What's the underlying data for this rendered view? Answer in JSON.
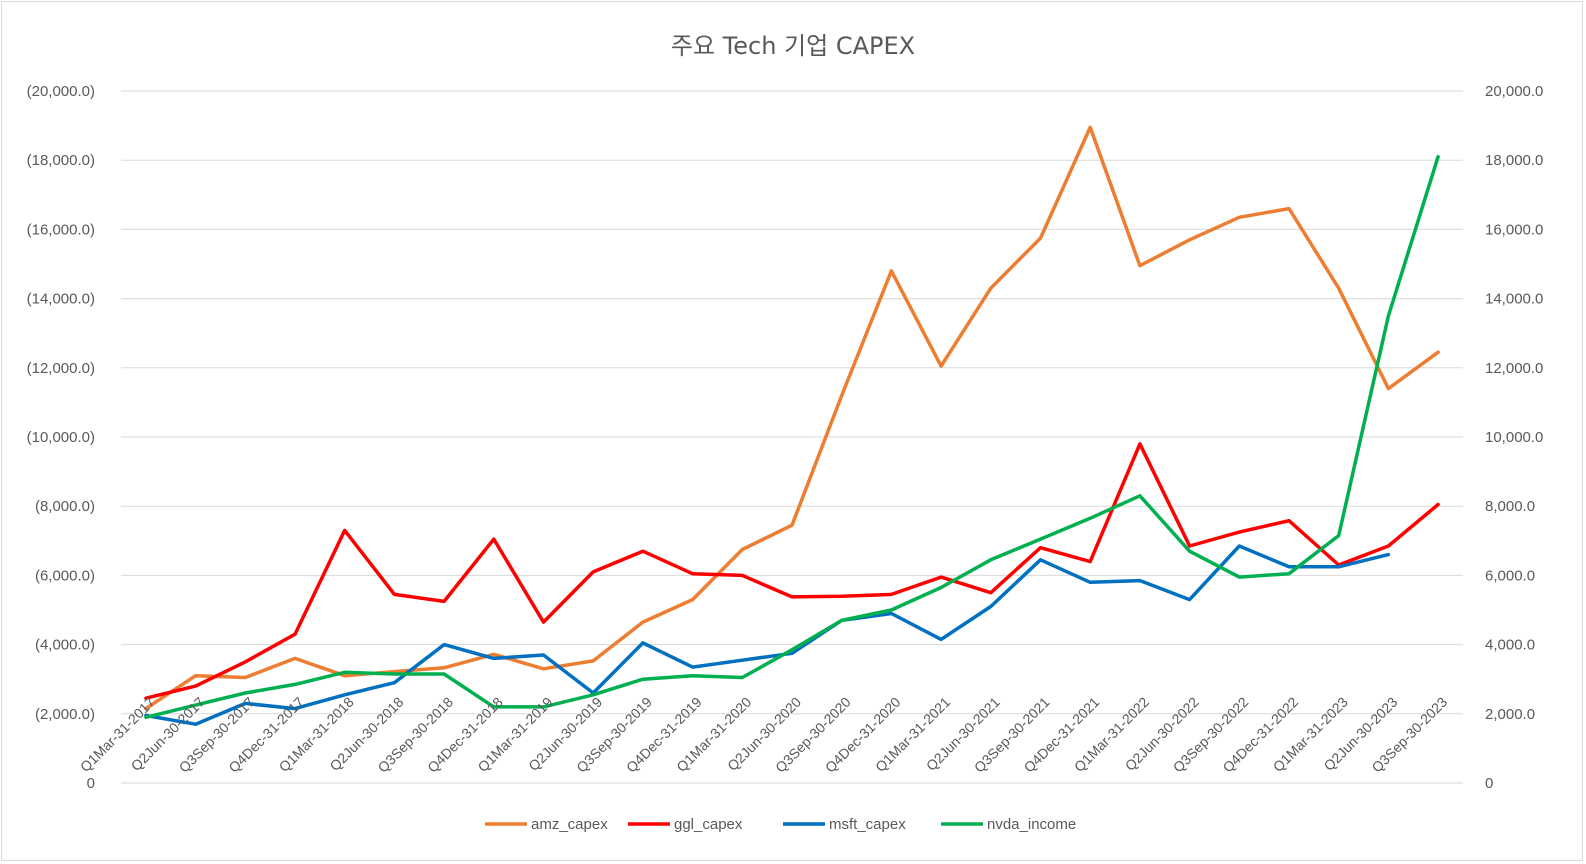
{
  "chart_data": {
    "type": "line",
    "title": "주요  Tech 기업 CAPEX",
    "xlabel": "",
    "ylabel": "",
    "ylim": [
      0,
      20000
    ],
    "y_ticks": [
      0,
      2000,
      4000,
      6000,
      8000,
      10000,
      12000,
      14000,
      16000,
      18000,
      20000
    ],
    "left_tick_labels": [
      "0",
      "(2,000.0)",
      "(4,000.0)",
      "(6,000.0)",
      "(8,000.0)",
      "(10,000.0)",
      "(12,000.0)",
      "(14,000.0)",
      "(16,000.0)",
      "(18,000.0)",
      "(20,000.0)"
    ],
    "right_tick_labels": [
      "0",
      "2,000.0",
      "4,000.0",
      "6,000.0",
      "8,000.0",
      "10,000.0",
      "12,000.0",
      "14,000.0",
      "16,000.0",
      "18,000.0",
      "20,000.0"
    ],
    "grid": true,
    "legend_position": "bottom",
    "categories": [
      "Q1Mar-31-2017",
      "Q2Jun-30-2017",
      "Q3Sep-30-2017",
      "Q4Dec-31-2017",
      "Q1Mar-31-2018",
      "Q2Jun-30-2018",
      "Q3Sep-30-2018",
      "Q4Dec-31-2018",
      "Q1Mar-31-2019",
      "Q2Jun-30-2019",
      "Q3Sep-30-2019",
      "Q4Dec-31-2019",
      "Q1Mar-31-2020",
      "Q2Jun-30-2020",
      "Q3Sep-30-2020",
      "Q4Dec-31-2020",
      "Q1Mar-31-2021",
      "Q2Jun-30-2021",
      "Q3Sep-30-2021",
      "Q4Dec-31-2021",
      "Q1Mar-31-2022",
      "Q2Jun-30-2022",
      "Q3Sep-30-2022",
      "Q4Dec-31-2022",
      "Q1Mar-31-2023",
      "Q2Jun-30-2023",
      "Q3Sep-30-2023"
    ],
    "series": [
      {
        "name": "amz_capex",
        "color": "#ed7d31",
        "values": [
          2150,
          3100,
          3050,
          3600,
          3100,
          3220,
          3330,
          3720,
          3300,
          3530,
          4650,
          5300,
          6750,
          7450,
          11200,
          14800,
          12050,
          14300,
          15750,
          18950,
          14950,
          15700,
          16350,
          16600,
          14300,
          11400,
          12450
        ]
      },
      {
        "name": "ggl_capex",
        "color": "#ff0000",
        "values": [
          2450,
          2800,
          3500,
          4300,
          7300,
          5450,
          5250,
          7050,
          4650,
          6100,
          6700,
          6050,
          6000,
          5380,
          5400,
          5450,
          5950,
          5500,
          6800,
          6400,
          9800,
          6850,
          7250,
          7580,
          6300,
          6850,
          8050
        ]
      },
      {
        "name": "msft_capex",
        "color": "#0070c0",
        "values": [
          1950,
          1700,
          2300,
          2150,
          2550,
          2900,
          4000,
          3600,
          3700,
          2600,
          4050,
          3350,
          3550,
          3750,
          4700,
          4900,
          4150,
          5100,
          6450,
          5800,
          5850,
          5300,
          6850,
          6250,
          6250,
          6600,
          null
        ]
      },
      {
        "name": "nvda_income",
        "color": "#00b050",
        "values": [
          1900,
          2250,
          2600,
          2850,
          3200,
          3150,
          3150,
          2200,
          2200,
          2550,
          3000,
          3100,
          3050,
          3850,
          4700,
          5000,
          5650,
          6450,
          7050,
          7650,
          8300,
          6700,
          5950,
          6050,
          7150,
          13500,
          18100
        ]
      }
    ]
  }
}
